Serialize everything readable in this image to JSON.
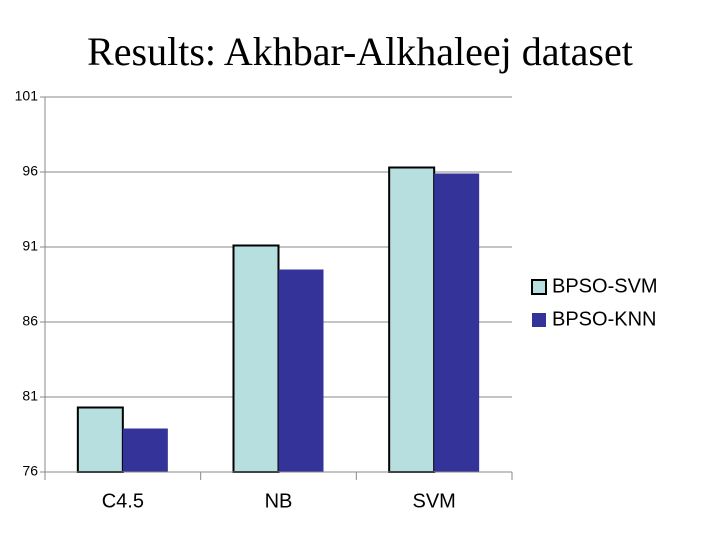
{
  "chart_data": {
    "type": "bar",
    "title": "Results: Akhbar-Alkhaleej dataset",
    "categories": [
      "C4.5",
      "NB",
      "SVM"
    ],
    "series": [
      {
        "name": "BPSO-SVM",
        "color": "#b7dfe0",
        "values": [
          80.3,
          91.1,
          96.3
        ]
      },
      {
        "name": "BPSO-KNN",
        "color": "#333399",
        "values": [
          78.9,
          89.5,
          95.9
        ]
      }
    ],
    "ylim": [
      76,
      101
    ],
    "yticks": [
      76,
      81,
      86,
      91,
      96,
      101
    ],
    "grid": true,
    "legend": "right"
  }
}
